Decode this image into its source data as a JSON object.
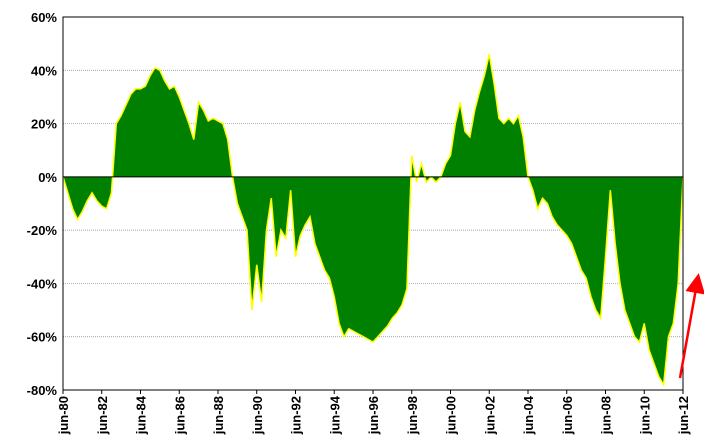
{
  "chart_data": {
    "type": "area",
    "categories": [
      "jun-80",
      null,
      null,
      null,
      null,
      null,
      null,
      null,
      "jun-82",
      null,
      null,
      null,
      null,
      null,
      null,
      null,
      "jun-84",
      null,
      null,
      null,
      null,
      null,
      null,
      null,
      "jun-86",
      null,
      null,
      null,
      null,
      null,
      null,
      null,
      "jun-88",
      null,
      null,
      null,
      null,
      null,
      null,
      null,
      "jun-90",
      null,
      null,
      null,
      null,
      null,
      null,
      null,
      "jun-92",
      null,
      null,
      null,
      null,
      null,
      null,
      null,
      "jun-94",
      null,
      null,
      null,
      null,
      null,
      null,
      null,
      "jun-96",
      null,
      null,
      null,
      null,
      null,
      null,
      null,
      "jun-98",
      null,
      null,
      null,
      null,
      null,
      null,
      null,
      "jun-00",
      null,
      null,
      null,
      null,
      null,
      null,
      null,
      "jun-02",
      null,
      null,
      null,
      null,
      null,
      null,
      null,
      "jun-04",
      null,
      null,
      null,
      null,
      null,
      null,
      null,
      "jun-06",
      null,
      null,
      null,
      null,
      null,
      null,
      null,
      "jun-08",
      null,
      null,
      null,
      null,
      null,
      null,
      null,
      "jun-10",
      null,
      null,
      null,
      null,
      null,
      null,
      null,
      "jun-12"
    ],
    "values": [
      0,
      -6,
      -12,
      -16,
      -13,
      -9,
      -6,
      -9,
      -11,
      -12,
      -6,
      20,
      23,
      27,
      31,
      33,
      33,
      34,
      38,
      41,
      40,
      36,
      33,
      34,
      30,
      25,
      20,
      14,
      28,
      25,
      21,
      22,
      21,
      20,
      14,
      0,
      -10,
      -15,
      -20,
      -50,
      -33,
      -47,
      -20,
      -8,
      -30,
      -20,
      -23,
      -5,
      -30,
      -22,
      -18,
      -15,
      -25,
      -30,
      -35,
      -38,
      -45,
      -55,
      -60,
      -57,
      -58,
      -59,
      -60,
      -61,
      -62,
      -60,
      -58,
      -56,
      -53,
      -51,
      -48,
      -42,
      8,
      -2,
      5,
      -2,
      0,
      -2,
      0,
      5,
      8,
      20,
      28,
      17,
      15,
      25,
      32,
      38,
      46,
      35,
      22,
      20,
      22,
      20,
      23,
      15,
      0,
      -5,
      -12,
      -8,
      -10,
      -15,
      -18,
      -20,
      -22,
      -25,
      -30,
      -35,
      -38,
      -45,
      -50,
      -53,
      -30,
      -5,
      -25,
      -40,
      -50,
      -55,
      -60,
      -62,
      -55,
      -65,
      -70,
      -75,
      -78,
      -60,
      -55,
      -40,
      0
    ],
    "color": "#008000",
    "line_color": "#ffff00",
    "ylim": [
      -80,
      60
    ],
    "yticks": [
      {
        "value": -80,
        "label": "-80%"
      },
      {
        "value": -60,
        "label": "-60%"
      },
      {
        "value": -40,
        "label": "-40%"
      },
      {
        "value": -20,
        "label": "-20%"
      },
      {
        "value": 0,
        "label": "0%"
      },
      {
        "value": 20,
        "label": "20%"
      },
      {
        "value": 40,
        "label": "40%"
      },
      {
        "value": 60,
        "label": "60%"
      }
    ],
    "grid": true
  }
}
